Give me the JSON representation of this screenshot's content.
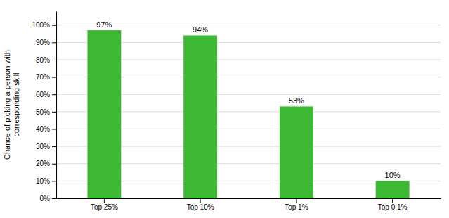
{
  "chart_data": {
    "type": "bar",
    "categories": [
      "Top 25%",
      "Top 10%",
      "Top 1%",
      "Top 0.1%"
    ],
    "values": [
      97,
      94,
      53,
      10
    ],
    "value_labels": [
      "97%",
      "94%",
      "53%",
      "10%"
    ],
    "data_labels": true,
    "color": "#3cb832",
    "ylabel": "Chance of picking a person with\ncorresponding skill",
    "ylim": [
      0,
      108
    ],
    "yticks": [
      {
        "value": 0,
        "label": "0%"
      },
      {
        "value": 10,
        "label": "10%"
      },
      {
        "value": 20,
        "label": "20%"
      },
      {
        "value": 30,
        "label": "30%"
      },
      {
        "value": 40,
        "label": "40%"
      },
      {
        "value": 50,
        "label": "50%"
      },
      {
        "value": 60,
        "label": "60%"
      },
      {
        "value": 70,
        "label": "70%"
      },
      {
        "value": 80,
        "label": "80%"
      },
      {
        "value": 90,
        "label": "90%"
      },
      {
        "value": 100,
        "label": "100%"
      }
    ],
    "grid": true
  }
}
